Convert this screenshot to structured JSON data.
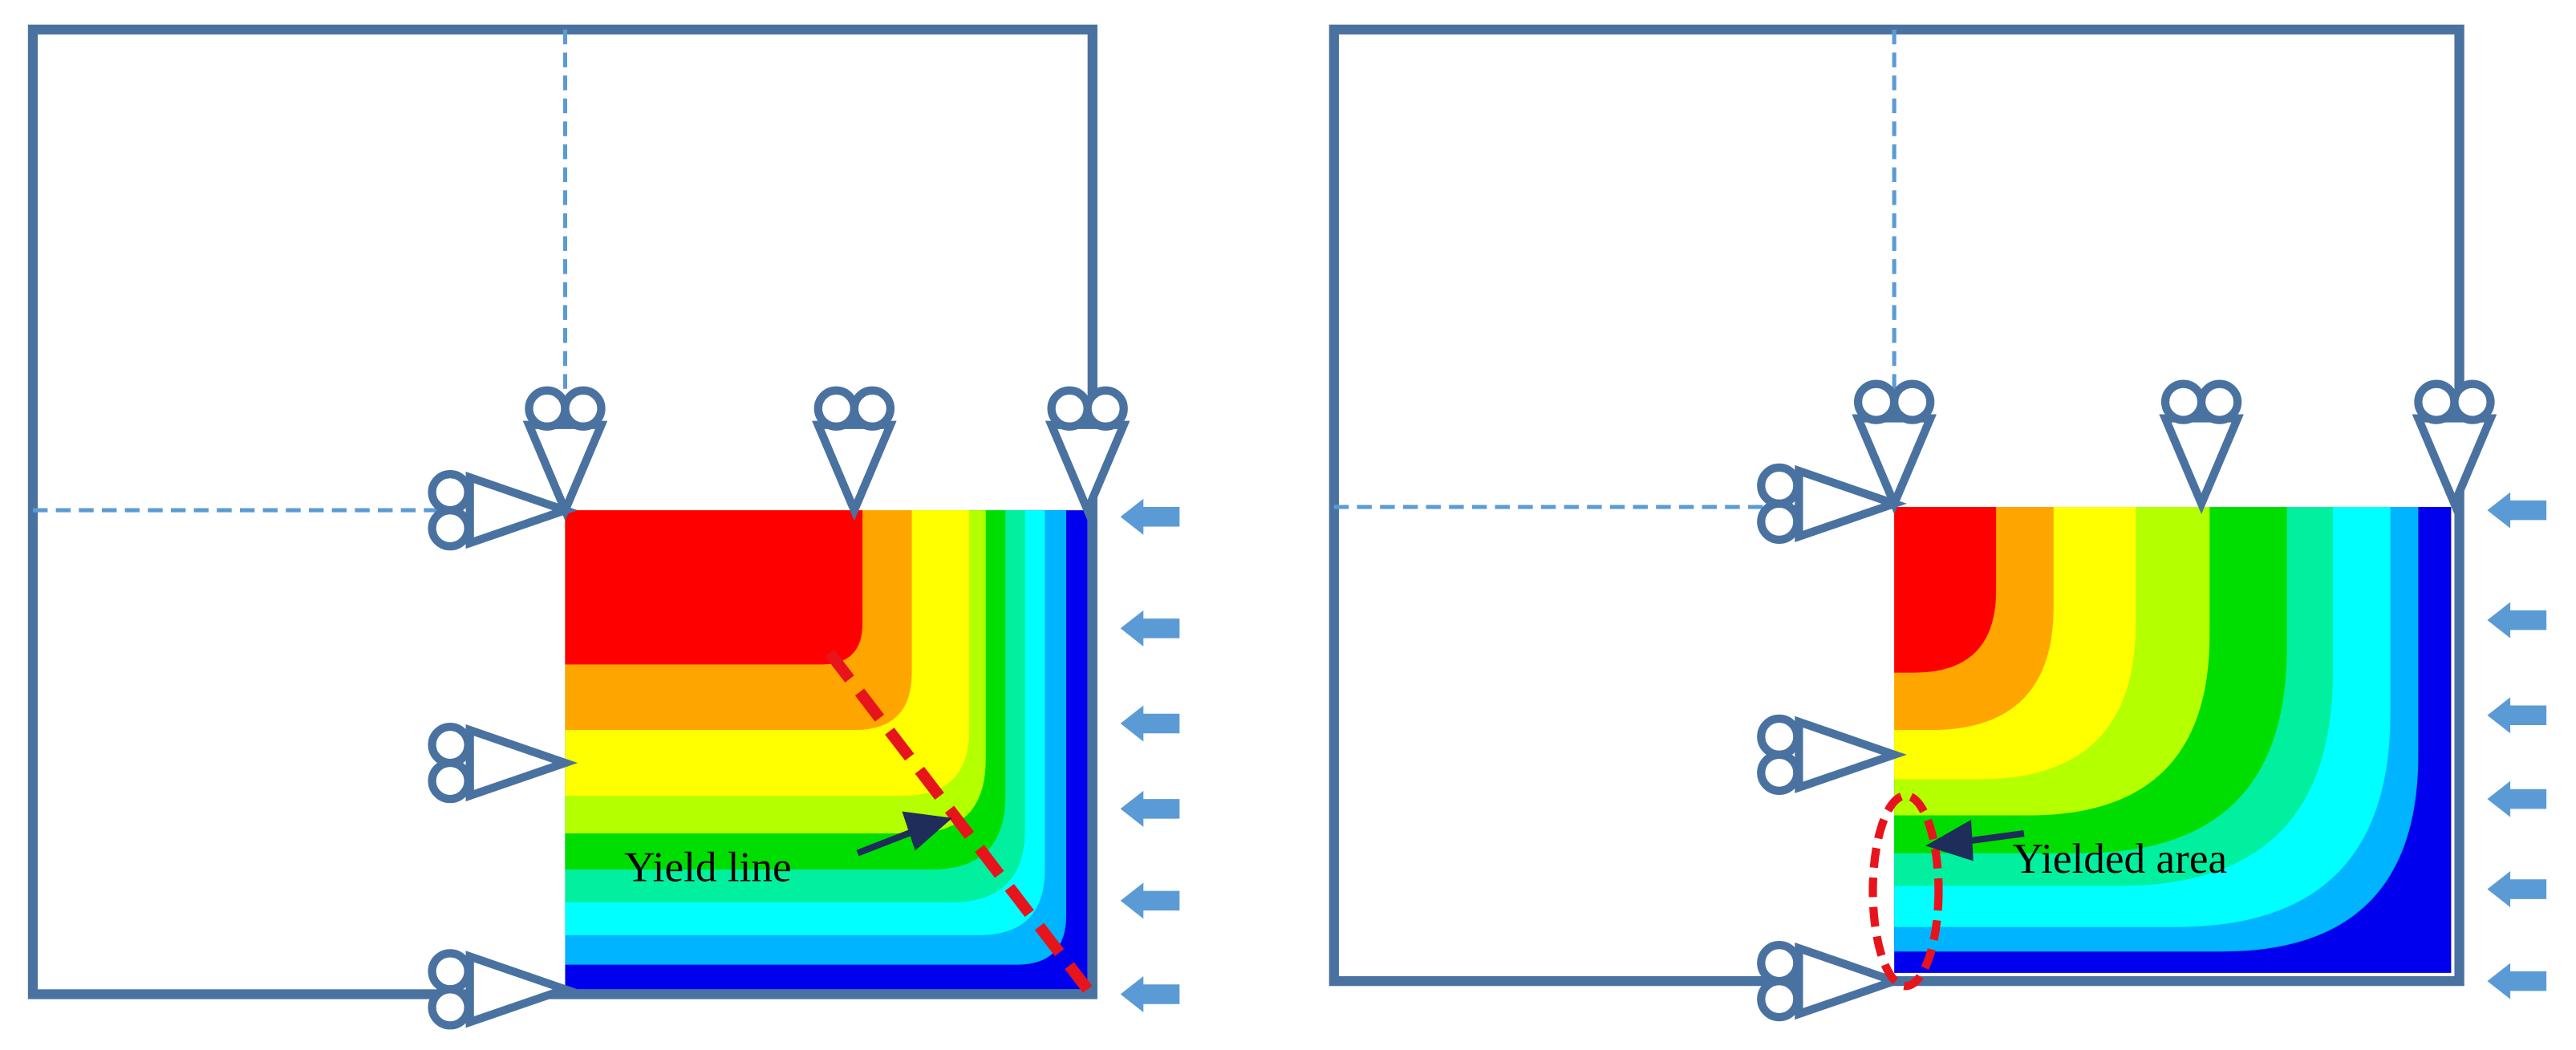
{
  "annotations": {
    "left": "Yield line",
    "right": "Yielded area"
  }
}
